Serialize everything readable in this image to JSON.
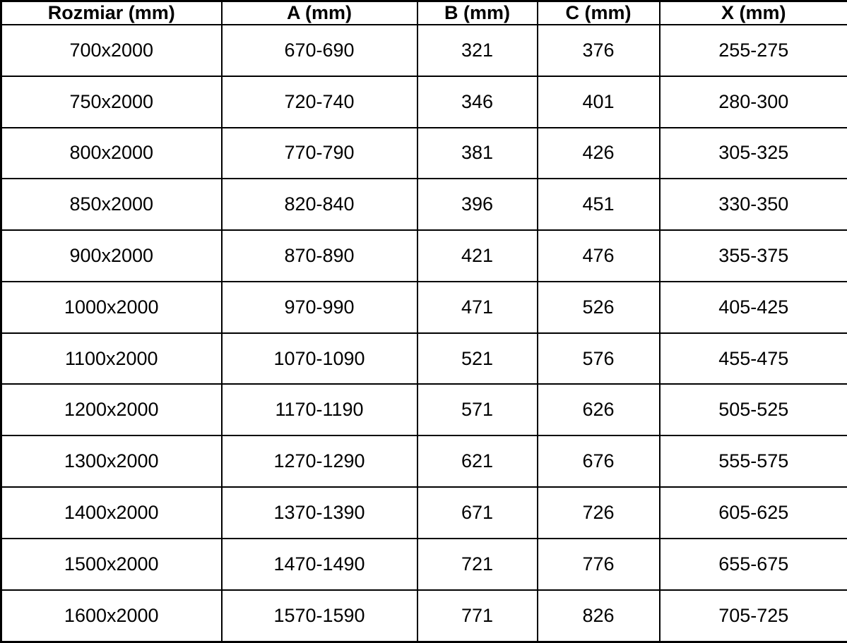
{
  "table": {
    "headers": [
      "Rozmiar (mm)",
      "A (mm)",
      "B (mm)",
      "C (mm)",
      "X (mm)"
    ],
    "rows": [
      [
        "700x2000",
        "670-690",
        "321",
        "376",
        "255-275"
      ],
      [
        "750x2000",
        "720-740",
        "346",
        "401",
        "280-300"
      ],
      [
        "800x2000",
        "770-790",
        "381",
        "426",
        "305-325"
      ],
      [
        "850x2000",
        "820-840",
        "396",
        "451",
        "330-350"
      ],
      [
        "900x2000",
        "870-890",
        "421",
        "476",
        "355-375"
      ],
      [
        "1000x2000",
        "970-990",
        "471",
        "526",
        "405-425"
      ],
      [
        "1100x2000",
        "1070-1090",
        "521",
        "576",
        "455-475"
      ],
      [
        "1200x2000",
        "1170-1190",
        "571",
        "626",
        "505-525"
      ],
      [
        "1300x2000",
        "1270-1290",
        "621",
        "676",
        "555-575"
      ],
      [
        "1400x2000",
        "1370-1390",
        "671",
        "726",
        "605-625"
      ],
      [
        "1500x2000",
        "1470-1490",
        "721",
        "776",
        "655-675"
      ],
      [
        "1600x2000",
        "1570-1590",
        "771",
        "826",
        "705-725"
      ]
    ]
  },
  "colors": {
    "border": "#000000",
    "background": "#ffffff",
    "text": "#000000"
  }
}
